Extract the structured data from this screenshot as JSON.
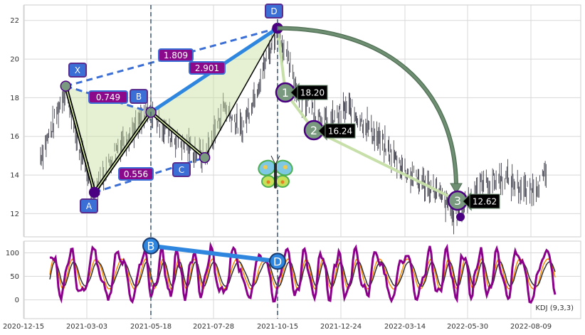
{
  "colors": {
    "price": "#2b2b3a",
    "point_box": "#3b6fd6",
    "point_box_border": "#5b2d8e",
    "ratio_box": "#8b0a8b",
    "xabcd_line": "#000000",
    "xabcd_inner": "#d9f0a3",
    "fill": "#c8dfa0",
    "bd_line": "#2e86de",
    "dashed": "#3b6fd6",
    "pivot_dot": "#4b0082",
    "pivot_node": "#7a9a80",
    "arrow": "#6f8f73",
    "target_line": "#c7dfa8",
    "target_box": "#000000",
    "k_line": "#8b008b",
    "d_line": "#ff8c00",
    "j_line": "#333333",
    "vline": "#4a6079"
  },
  "chart_data": [
    {
      "type": "line",
      "x_ticks": [
        "2020-12-15",
        "2021-03-03",
        "2021-05-18",
        "2021-07-28",
        "2021-10-15",
        "2021-12-24",
        "2022-03-14",
        "2022-05-30",
        "2022-08-09"
      ],
      "y_ticks": [
        "12",
        "14",
        "16",
        "18",
        "20",
        "22"
      ],
      "ylim": [
        10.8,
        22.8
      ],
      "grid": true,
      "pattern": {
        "points": [
          {
            "name": "X",
            "date": "2021-02-05",
            "value": 18.6
          },
          {
            "name": "A",
            "date": "2021-03-12",
            "value": 13.1
          },
          {
            "name": "B",
            "date": "2021-05-18",
            "value": 17.25
          },
          {
            "name": "C",
            "date": "2021-07-18",
            "value": 14.9
          },
          {
            "name": "D",
            "date": "2021-10-15",
            "value": 21.6
          }
        ],
        "ratios": [
          "0.749",
          "1.809",
          "2.901",
          "0.556"
        ]
      },
      "targets": [
        {
          "label": "1",
          "value": "18.20"
        },
        {
          "label": "2",
          "value": "16.24"
        },
        {
          "label": "3",
          "value": "12.62"
        }
      ]
    },
    {
      "type": "line",
      "label": "KDJ (9,3,3)",
      "y_ticks": [
        "0",
        "50",
        "100"
      ],
      "ylim": [
        -40,
        125
      ],
      "grid": true,
      "markers": [
        {
          "name": "B",
          "value": 115
        },
        {
          "name": "D",
          "value": 82
        }
      ]
    }
  ]
}
